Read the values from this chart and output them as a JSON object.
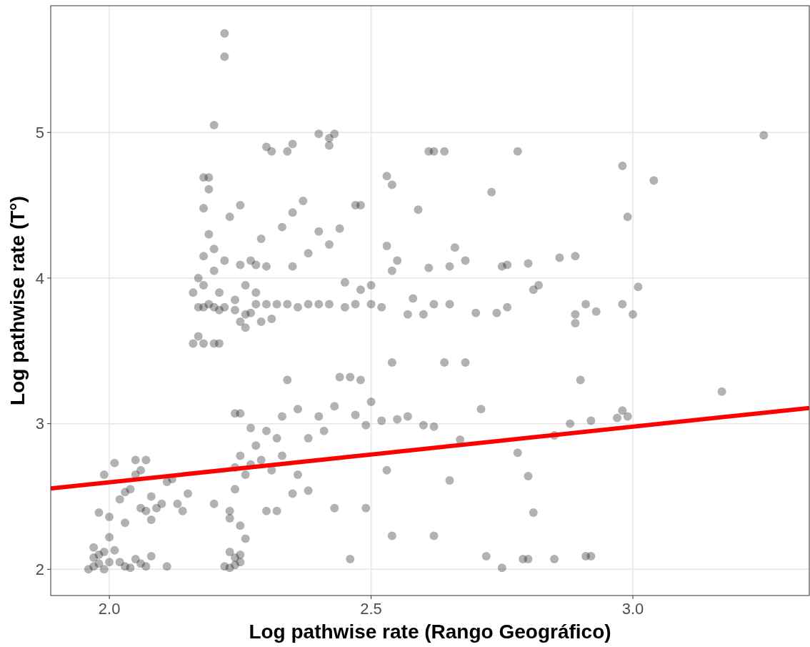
{
  "chart_data": {
    "type": "scatter",
    "xlabel": "Log pathwise rate (Rango Geográfico)",
    "ylabel": "Log pathwise rate (T°)",
    "xlim": [
      1.888,
      3.337
    ],
    "ylim": [
      1.82,
      5.87
    ],
    "xticks": [
      {
        "value": 2.0,
        "label": "2.0"
      },
      2.5,
      {
        "value": 3.0,
        "label": "3.0"
      }
    ],
    "yticks": [
      2,
      3,
      4,
      5
    ],
    "grid": true,
    "marker": "circle",
    "series": [
      {
        "color": "#000000",
        "x": [
          2.22,
          2.22,
          2.2,
          2.3,
          2.31,
          2.34,
          2.35,
          2.4,
          2.42,
          2.43,
          2.42,
          2.61,
          2.62,
          2.64,
          2.78,
          2.98,
          3.25,
          3.04,
          2.99,
          2.53,
          2.54,
          2.73,
          2.59,
          2.48,
          2.47,
          2.37,
          2.35,
          2.25,
          2.18,
          2.19,
          2.19,
          2.23,
          2.18,
          2.16,
          2.17,
          2.18,
          2.2,
          2.21,
          2.17,
          2.18,
          2.19,
          2.2,
          2.21,
          2.22,
          2.24,
          2.26,
          2.27,
          2.28,
          2.3,
          2.32,
          2.34,
          2.36,
          2.38,
          2.4,
          2.42,
          2.45,
          2.47,
          2.5,
          2.52,
          2.57,
          2.6,
          2.62,
          2.65,
          2.7,
          2.74,
          2.76,
          2.89,
          2.89,
          2.91,
          2.93,
          2.98,
          3.0,
          3.01,
          2.82,
          2.81,
          2.8,
          2.76,
          2.75,
          2.68,
          2.65,
          2.66,
          2.61,
          2.58,
          2.55,
          2.54,
          2.53,
          2.5,
          2.48,
          2.45,
          2.44,
          2.42,
          2.4,
          2.38,
          2.35,
          2.33,
          2.3,
          2.29,
          2.28,
          2.27,
          2.25,
          2.26,
          2.28,
          2.22,
          2.2,
          2.19,
          2.18,
          2.17,
          2.16,
          2.18,
          2.2,
          2.21,
          2.24,
          2.25,
          2.26,
          2.29,
          2.31,
          2.86,
          2.89,
          2.2,
          2.23,
          2.24,
          2.24,
          2.25,
          2.26,
          2.27,
          2.28,
          2.29,
          2.3,
          2.31,
          2.32,
          2.33,
          2.35,
          2.36,
          2.36,
          2.34,
          2.33,
          2.38,
          2.4,
          2.41,
          2.43,
          2.44,
          2.46,
          2.47,
          2.48,
          2.49,
          2.5,
          2.52,
          2.53,
          2.54,
          2.55,
          2.57,
          2.6,
          2.62,
          2.64,
          2.65,
          2.67,
          2.68,
          2.71,
          2.78,
          2.8,
          2.81,
          2.85,
          2.88,
          2.9,
          2.92,
          2.97,
          2.98,
          2.99,
          3.17,
          2.25,
          2.24,
          2.27,
          2.23,
          2.25,
          2.26,
          2.3,
          2.32,
          2.38,
          2.43,
          2.49,
          2.54,
          2.62,
          2.46,
          2.72,
          2.75,
          2.79,
          2.8,
          2.85,
          2.91,
          2.92,
          2.22,
          2.23,
          2.24,
          2.25,
          2.24,
          2.23,
          2.25,
          1.96,
          1.97,
          1.97,
          1.98,
          1.98,
          1.99,
          1.97,
          1.99,
          2.0,
          2.01,
          2.0,
          2.0,
          1.99,
          2.01,
          1.98,
          2.02,
          2.03,
          2.04,
          2.05,
          2.06,
          2.07,
          2.08,
          2.11,
          2.02,
          2.03,
          2.04,
          2.05,
          2.05,
          2.06,
          2.07,
          2.07,
          2.08,
          2.09,
          2.1,
          2.11,
          2.12,
          2.13,
          2.14,
          2.15,
          2.03,
          2.06,
          2.08
        ],
        "values": [
          5.68,
          5.52,
          5.05,
          4.9,
          4.87,
          4.87,
          4.92,
          4.99,
          4.96,
          4.99,
          4.91,
          4.87,
          4.87,
          4.87,
          4.87,
          4.77,
          4.98,
          4.67,
          4.42,
          4.7,
          4.64,
          4.59,
          4.47,
          4.5,
          4.5,
          4.53,
          4.45,
          4.5,
          4.69,
          4.69,
          4.61,
          4.42,
          4.48,
          3.55,
          3.6,
          3.55,
          3.55,
          3.55,
          3.8,
          3.8,
          3.82,
          3.8,
          3.78,
          3.8,
          3.78,
          3.75,
          3.76,
          3.82,
          3.82,
          3.82,
          3.82,
          3.8,
          3.82,
          3.82,
          3.82,
          3.8,
          3.82,
          3.82,
          3.8,
          3.75,
          3.75,
          3.82,
          3.82,
          3.76,
          3.76,
          3.8,
          3.75,
          3.69,
          3.82,
          3.77,
          3.82,
          3.75,
          3.94,
          3.95,
          3.92,
          4.1,
          4.09,
          4.08,
          4.12,
          4.08,
          4.21,
          4.07,
          3.86,
          4.12,
          4.05,
          4.22,
          3.95,
          3.92,
          3.97,
          4.34,
          4.23,
          4.32,
          4.17,
          4.08,
          4.35,
          4.08,
          4.27,
          4.09,
          4.12,
          4.09,
          3.95,
          3.9,
          4.12,
          4.2,
          4.3,
          4.15,
          4.0,
          3.9,
          3.95,
          4.05,
          3.9,
          3.85,
          3.7,
          3.66,
          3.7,
          3.72,
          4.14,
          4.15,
          2.45,
          2.4,
          2.55,
          2.7,
          2.78,
          2.65,
          2.72,
          2.85,
          2.75,
          2.95,
          2.68,
          2.9,
          2.78,
          2.52,
          2.65,
          3.1,
          3.3,
          3.05,
          2.9,
          3.05,
          2.95,
          3.12,
          3.32,
          3.32,
          3.06,
          3.3,
          2.99,
          3.15,
          3.02,
          2.68,
          3.42,
          3.03,
          3.05,
          2.99,
          2.98,
          3.42,
          2.61,
          2.89,
          3.42,
          3.1,
          2.8,
          2.64,
          2.39,
          2.92,
          3.0,
          3.3,
          3.02,
          3.04,
          3.09,
          3.05,
          3.22,
          3.07,
          3.07,
          2.97,
          2.35,
          2.3,
          2.21,
          2.4,
          2.4,
          2.54,
          2.42,
          2.42,
          2.23,
          2.23,
          2.07,
          2.09,
          2.01,
          2.07,
          2.07,
          2.07,
          2.09,
          2.09,
          2.02,
          2.01,
          2.03,
          2.05,
          2.08,
          2.12,
          2.1,
          2.0,
          2.02,
          2.08,
          2.1,
          2.04,
          2.0,
          2.15,
          2.12,
          2.05,
          2.13,
          2.22,
          2.36,
          2.65,
          2.73,
          2.39,
          2.05,
          2.02,
          2.01,
          2.07,
          2.04,
          2.02,
          2.09,
          2.02,
          2.48,
          2.53,
          2.55,
          2.65,
          2.75,
          2.68,
          2.75,
          2.4,
          2.5,
          2.42,
          2.45,
          2.6,
          2.62,
          2.45,
          2.4,
          2.52,
          2.32,
          2.42,
          2.34
        ]
      },
      {
        "type": "line",
        "color": "#ff0000",
        "marker": "none",
        "x": [
          1.888,
          3.337
        ],
        "values": [
          2.555,
          3.108
        ]
      }
    ]
  }
}
